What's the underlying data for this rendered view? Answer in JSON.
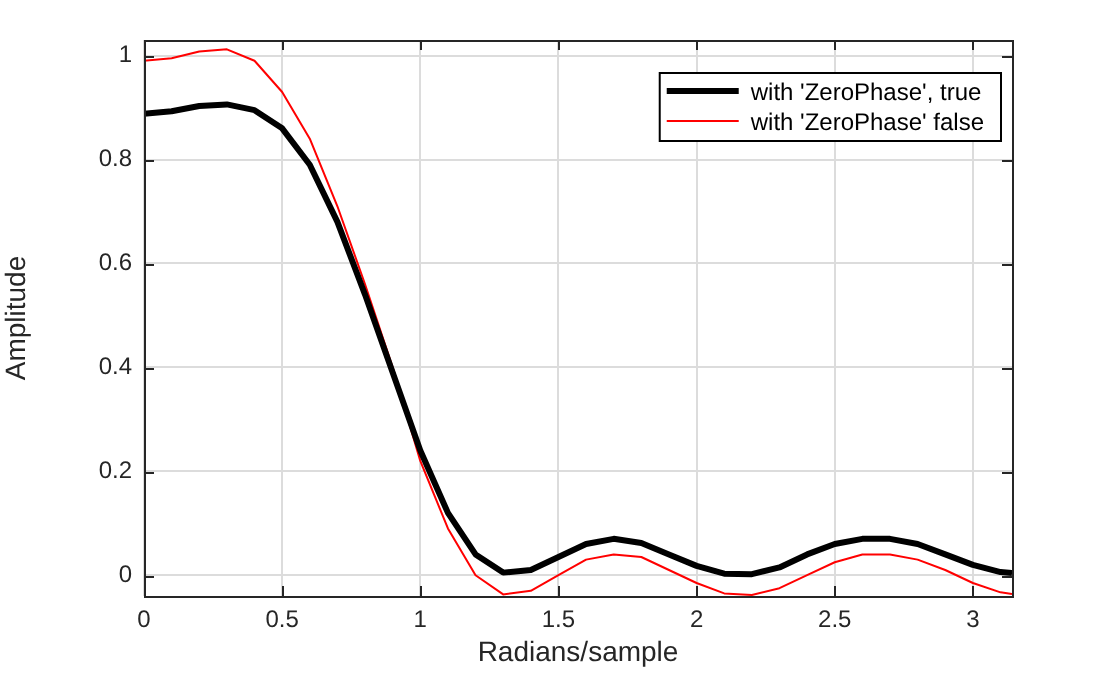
{
  "chart_data": {
    "type": "line",
    "xlabel": "Radians/sample",
    "ylabel": "Amplitude",
    "x": [
      0,
      0.1,
      0.2,
      0.3,
      0.4,
      0.5,
      0.6,
      0.7,
      0.8,
      0.9,
      1.0,
      1.1,
      1.2,
      1.3,
      1.4,
      1.5,
      1.6,
      1.7,
      1.8,
      1.9,
      2.0,
      2.1,
      2.2,
      2.3,
      2.4,
      2.5,
      2.6,
      2.7,
      2.8,
      2.9,
      3.0,
      3.1,
      3.1416
    ],
    "series": [
      {
        "name": "with 'ZeroPhase', true",
        "color": "#000000",
        "values": [
          0.888,
          0.893,
          0.903,
          0.906,
          0.895,
          0.86,
          0.79,
          0.68,
          0.54,
          0.39,
          0.24,
          0.12,
          0.04,
          0.005,
          0.01,
          0.035,
          0.06,
          0.07,
          0.062,
          0.04,
          0.018,
          0.003,
          0.002,
          0.015,
          0.04,
          0.06,
          0.07,
          0.07,
          0.06,
          0.04,
          0.02,
          0.006,
          0.004
        ]
      },
      {
        "name": "with 'ZeroPhase' false",
        "color": "#ff0000",
        "values": [
          0.99,
          0.995,
          1.008,
          1.012,
          0.99,
          0.93,
          0.84,
          0.71,
          0.56,
          0.4,
          0.22,
          0.09,
          0.0,
          -0.037,
          -0.03,
          0.0,
          0.03,
          0.04,
          0.035,
          0.01,
          -0.015,
          -0.035,
          -0.038,
          -0.025,
          0.0,
          0.025,
          0.04,
          0.04,
          0.03,
          0.01,
          -0.015,
          -0.033,
          -0.036
        ]
      }
    ],
    "xlim": [
      0,
      3.1416
    ],
    "xticks": [
      0,
      0.5,
      1,
      1.5,
      2,
      2.5,
      3
    ],
    "ylim": [
      -0.04,
      1.03
    ],
    "yticks": [
      0,
      0.2,
      0.4,
      0.6,
      0.8,
      1
    ],
    "grid": true,
    "legend": "top right",
    "marker": "none",
    "line_style": "solid"
  }
}
